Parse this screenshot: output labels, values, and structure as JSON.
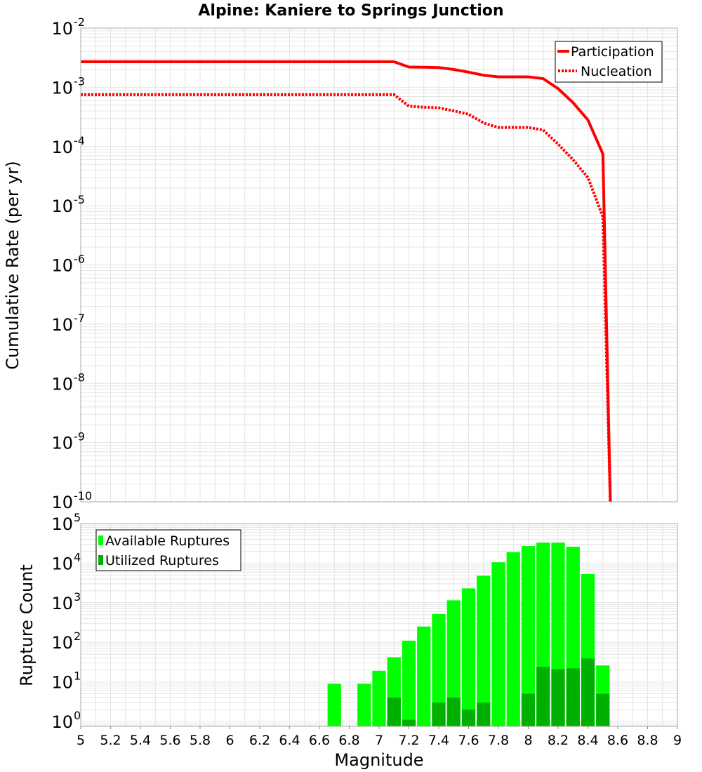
{
  "title": "Alpine: Kaniere to Springs Junction",
  "colors": {
    "participation": "#ff0000",
    "nucleation": "#ff0000",
    "available": "#00ff00",
    "utilized": "#00b000",
    "grid": "#e4e4e4",
    "frame": "#aaaaaa"
  },
  "chart_data": [
    {
      "type": "line",
      "title": "Alpine: Kaniere to Springs Junction",
      "xlabel": "Magnitude",
      "ylabel": "Cumulative Rate (per yr)",
      "xlim": [
        5,
        9
      ],
      "ylim": [
        1e-10,
        0.01
      ],
      "yscale": "log",
      "y_tick_exponents": [
        "-10",
        "-9",
        "-8",
        "-7",
        "-6",
        "-5",
        "-4",
        "-3",
        "-2"
      ],
      "grid": true,
      "legend_position": "top-right",
      "series": [
        {
          "name": "Participation",
          "style": "solid",
          "x": [
            5.0,
            7.1,
            7.2,
            7.3,
            7.4,
            7.5,
            7.6,
            7.7,
            7.8,
            7.9,
            8.0,
            8.1,
            8.2,
            8.3,
            8.4,
            8.5,
            8.55
          ],
          "y": [
            0.0027,
            0.0027,
            0.0022,
            0.00218,
            0.00216,
            0.002,
            0.0018,
            0.0016,
            0.0015,
            0.0015,
            0.0015,
            0.0014,
            0.00095,
            0.00055,
            0.00028,
            7.5e-05,
            1e-10
          ]
        },
        {
          "name": "Nucleation",
          "style": "dotted",
          "x": [
            5.0,
            7.1,
            7.2,
            7.3,
            7.4,
            7.5,
            7.6,
            7.7,
            7.8,
            7.9,
            8.0,
            8.1,
            8.2,
            8.3,
            8.4,
            8.5,
            8.55
          ],
          "y": [
            0.00075,
            0.00075,
            0.00048,
            0.00046,
            0.00045,
            0.0004,
            0.00035,
            0.00025,
            0.00021,
            0.00021,
            0.00021,
            0.00019,
            0.00011,
            6e-05,
            3e-05,
            6.5e-06,
            1e-10
          ]
        }
      ]
    },
    {
      "type": "bar",
      "xlabel": "Magnitude",
      "ylabel": "Rupture Count",
      "xlim": [
        5,
        9
      ],
      "ylim": [
        0.75,
        100000.0
      ],
      "yscale": "log",
      "y_tick_exponents": [
        "0",
        "1",
        "2",
        "3",
        "4",
        "5"
      ],
      "x_ticks": [
        "5",
        "5.2",
        "5.4",
        "5.6",
        "5.8",
        "6",
        "6.2",
        "6.4",
        "6.6",
        "6.8",
        "7",
        "7.2",
        "7.4",
        "7.6",
        "7.8",
        "8",
        "8.2",
        "8.4",
        "8.6",
        "8.8",
        "9"
      ],
      "grid": true,
      "legend_position": "top-left",
      "bin_width": 0.1,
      "centers": [
        6.7,
        6.9,
        7.0,
        7.1,
        7.2,
        7.3,
        7.4,
        7.5,
        7.6,
        7.7,
        7.8,
        7.9,
        8.0,
        8.1,
        8.2,
        8.3,
        8.4,
        8.5
      ],
      "series": [
        {
          "name": "Available Ruptures",
          "values": [
            9,
            9,
            19,
            42,
            110,
            250,
            520,
            1150,
            2300,
            4800,
            10500,
            19000,
            27000,
            33000,
            33000,
            26000,
            5300,
            26
          ]
        },
        {
          "name": "Utilized Ruptures",
          "values": [
            0,
            0,
            0,
            4,
            1.1,
            0,
            3,
            4,
            2,
            3,
            0,
            0,
            5,
            24,
            21,
            22,
            39,
            5
          ]
        }
      ]
    }
  ]
}
